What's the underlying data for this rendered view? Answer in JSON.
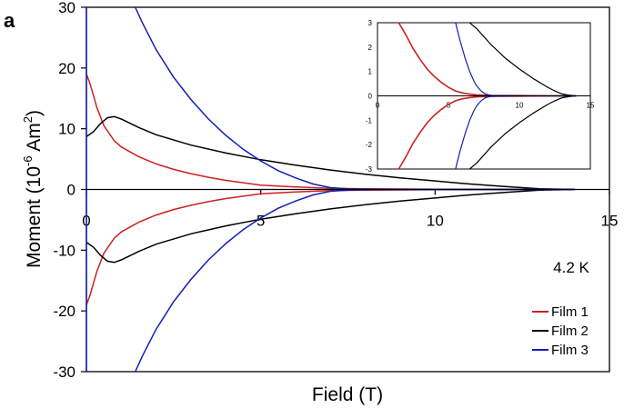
{
  "chart_data": {
    "type": "line",
    "panel_label": "a",
    "xlabel": "Field (T)",
    "ylabel_prefix": "Moment (10",
    "ylabel_exp1": "-6",
    "ylabel_mid": " Am",
    "ylabel_exp2": "2",
    "ylabel_suffix": ")",
    "xlim": [
      0,
      15
    ],
    "ylim": [
      -30,
      30
    ],
    "x_ticks": [
      "0",
      "5",
      "10",
      "15"
    ],
    "y_ticks": [
      "30",
      "20",
      "10",
      "0",
      "-10",
      "-20",
      "-30"
    ],
    "temperature_label": "4.2 K",
    "legend_position": "bottom-right",
    "grid": false,
    "colors": {
      "Film 1": "#cc2020",
      "Film 2": "#000000",
      "Film 3": "#1020b0"
    },
    "series": [
      {
        "name": "Film 1",
        "color": "#cc2020",
        "upper": {
          "x": [
            0,
            0.1,
            0.3,
            0.5,
            0.8,
            1.0,
            1.5,
            2.0,
            2.5,
            3.0,
            3.5,
            4.0,
            4.5,
            5.0,
            6.0,
            7.0,
            8.0,
            10.0,
            12.0,
            14.0
          ],
          "y": [
            19,
            17.5,
            13.5,
            10.5,
            8.0,
            7.0,
            5.4,
            4.2,
            3.3,
            2.6,
            2.0,
            1.5,
            1.1,
            0.7,
            0.4,
            0.2,
            0.1,
            0.05,
            0.02,
            0.0
          ]
        },
        "lower": {
          "x": [
            0,
            0.1,
            0.3,
            0.5,
            0.8,
            1.0,
            1.5,
            2.0,
            2.5,
            3.0,
            3.5,
            4.0,
            4.5,
            5.0,
            6.0,
            7.0,
            8.0,
            10.0,
            12.0,
            14.0
          ],
          "y": [
            -19,
            -17.5,
            -13.5,
            -10.5,
            -8.0,
            -7.0,
            -5.4,
            -4.2,
            -3.3,
            -2.6,
            -2.0,
            -1.5,
            -1.1,
            -0.7,
            -0.4,
            -0.2,
            -0.1,
            -0.05,
            -0.02,
            0.0
          ]
        }
      },
      {
        "name": "Film 2",
        "color": "#000000",
        "upper": {
          "x": [
            0,
            0.2,
            0.4,
            0.6,
            0.8,
            1.0,
            1.5,
            2.0,
            3.0,
            4.0,
            5.0,
            6.0,
            7.0,
            8.0,
            9.0,
            10.0,
            11.0,
            12.0,
            12.5,
            13.0,
            14.0
          ],
          "y": [
            8.7,
            9.5,
            10.8,
            11.8,
            12.0,
            11.6,
            10.2,
            9.0,
            7.3,
            6.0,
            4.9,
            4.0,
            3.2,
            2.5,
            1.9,
            1.4,
            0.9,
            0.5,
            0.3,
            0.1,
            0.0
          ]
        },
        "lower": {
          "x": [
            0,
            0.2,
            0.4,
            0.6,
            0.8,
            1.0,
            1.5,
            2.0,
            3.0,
            4.0,
            5.0,
            6.0,
            7.0,
            8.0,
            9.0,
            10.0,
            11.0,
            12.0,
            12.5,
            13.0,
            14.0
          ],
          "y": [
            -8.7,
            -9.5,
            -10.8,
            -11.8,
            -12.0,
            -11.6,
            -10.2,
            -9.0,
            -7.3,
            -6.0,
            -4.9,
            -4.0,
            -3.2,
            -2.5,
            -1.9,
            -1.4,
            -0.9,
            -0.5,
            -0.3,
            -0.1,
            0.0
          ]
        }
      },
      {
        "name": "Film 3",
        "color": "#1020b0",
        "upper": {
          "x": [
            1.4,
            1.6,
            2.0,
            2.5,
            3.0,
            3.5,
            4.0,
            4.5,
            5.0,
            5.5,
            6.0,
            6.5,
            7.0,
            7.5,
            8.0,
            9.0,
            10.0,
            12.0,
            14.0
          ],
          "y": [
            30,
            27.5,
            23.0,
            18.5,
            14.8,
            11.6,
            8.9,
            6.6,
            4.7,
            3.1,
            1.9,
            0.9,
            0.3,
            0.1,
            0.05,
            0.02,
            0.01,
            0.0,
            0.0
          ]
        },
        "lower": {
          "x": [
            1.4,
            1.6,
            2.0,
            2.5,
            3.0,
            3.5,
            4.0,
            4.5,
            5.0,
            5.5,
            6.0,
            6.5,
            7.0,
            7.5,
            8.0,
            9.0,
            10.0,
            12.0,
            14.0
          ],
          "y": [
            -30,
            -27.5,
            -23.0,
            -18.5,
            -14.8,
            -11.6,
            -8.9,
            -6.6,
            -4.7,
            -3.1,
            -1.9,
            -0.9,
            -0.3,
            -0.1,
            -0.05,
            -0.02,
            -0.01,
            0.0,
            0.0
          ]
        },
        "vertical_segment": {
          "x": [
            0,
            0
          ],
          "y": [
            -30,
            30
          ]
        }
      }
    ],
    "inset": {
      "xlim": [
        0,
        15
      ],
      "ylim": [
        -3,
        3
      ],
      "x_ticks": [
        "0",
        "5",
        "10",
        "15"
      ],
      "y_ticks": [
        "3",
        "2",
        "1",
        "0",
        "-1",
        "-2",
        "-3"
      ],
      "series": [
        {
          "name": "Film 1",
          "upper": {
            "x": [
              1.5,
              2.0,
              2.5,
              3.0,
              3.5,
              4.0,
              4.5,
              5.0,
              5.5,
              6.0,
              6.5,
              7.0,
              8.0,
              10.0,
              12.0,
              14.0
            ],
            "y": [
              3.0,
              2.5,
              1.95,
              1.5,
              1.1,
              0.8,
              0.55,
              0.35,
              0.2,
              0.12,
              0.07,
              0.04,
              0.02,
              0.01,
              0.0,
              0.0
            ]
          },
          "lower": {
            "x": [
              1.5,
              2.0,
              2.5,
              3.0,
              3.5,
              4.0,
              4.5,
              5.0,
              5.5,
              6.0,
              6.5,
              7.0,
              8.0,
              10.0,
              12.0,
              14.0
            ],
            "y": [
              -3.0,
              -2.5,
              -1.95,
              -1.5,
              -1.1,
              -0.8,
              -0.55,
              -0.35,
              -0.2,
              -0.12,
              -0.07,
              -0.04,
              -0.02,
              -0.01,
              0.0,
              0.0
            ]
          }
        },
        {
          "name": "Film 2",
          "upper": {
            "x": [
              6.5,
              7.0,
              8.0,
              9.0,
              10.0,
              11.0,
              12.0,
              12.5,
              13.0,
              13.5,
              14.0
            ],
            "y": [
              3.0,
              2.75,
              2.1,
              1.55,
              1.1,
              0.7,
              0.35,
              0.2,
              0.08,
              0.03,
              0.0
            ]
          },
          "lower": {
            "x": [
              6.5,
              7.0,
              8.0,
              9.0,
              10.0,
              11.0,
              12.0,
              12.5,
              13.0,
              13.5,
              14.0
            ],
            "y": [
              -3.0,
              -2.75,
              -2.1,
              -1.55,
              -1.1,
              -0.7,
              -0.35,
              -0.2,
              -0.08,
              -0.03,
              0.0
            ]
          }
        },
        {
          "name": "Film 3",
          "upper": {
            "x": [
              5.5,
              5.8,
              6.0,
              6.2,
              6.5,
              6.8,
              7.0,
              7.3,
              7.6,
              8.0,
              10.0,
              14.0
            ],
            "y": [
              3.0,
              2.3,
              1.9,
              1.5,
              1.0,
              0.6,
              0.4,
              0.2,
              0.08,
              0.02,
              0.0,
              0.0
            ]
          },
          "lower": {
            "x": [
              5.5,
              5.8,
              6.0,
              6.2,
              6.5,
              6.8,
              7.0,
              7.3,
              7.6,
              8.0,
              10.0,
              14.0
            ],
            "y": [
              -3.0,
              -2.3,
              -1.9,
              -1.5,
              -1.0,
              -0.6,
              -0.4,
              -0.2,
              -0.08,
              -0.02,
              0.0,
              0.0
            ]
          }
        }
      ]
    }
  }
}
